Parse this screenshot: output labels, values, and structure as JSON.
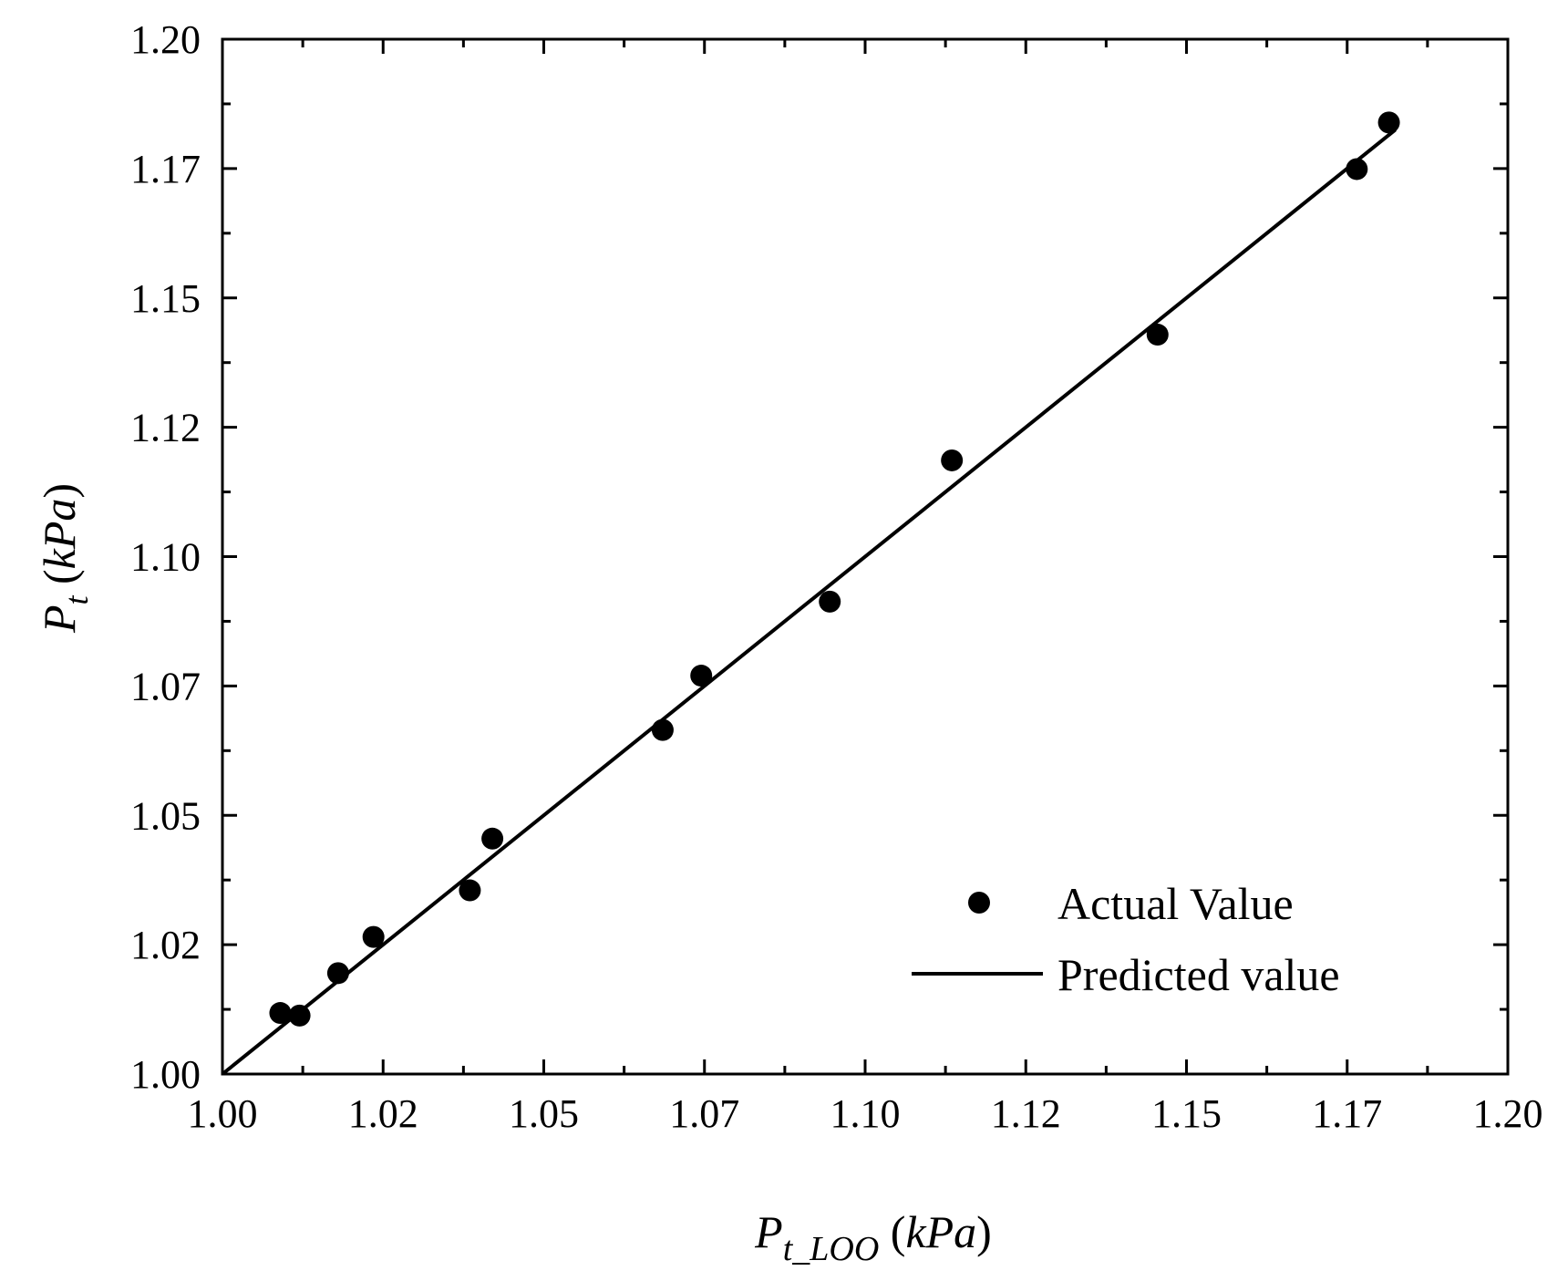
{
  "chart_data": {
    "type": "scatter",
    "title": "",
    "xlabel": {
      "main": "P",
      "sub": "t_LOO",
      "unit": "kPa"
    },
    "ylabel": {
      "main": "P",
      "sub": "t",
      "unit": "kPa"
    },
    "xlim": [
      1.0,
      1.2
    ],
    "ylim": [
      1.0,
      1.2
    ],
    "x_tick_values": [
      1.0,
      1.025,
      1.05,
      1.075,
      1.1,
      1.125,
      1.15,
      1.175,
      1.2
    ],
    "x_tick_labels": [
      "1.00",
      "1.02",
      "1.05",
      "1.07",
      "1.10",
      "1.12",
      "1.15",
      "1.17",
      "1.20"
    ],
    "y_tick_values": [
      1.0,
      1.025,
      1.05,
      1.075,
      1.1,
      1.125,
      1.15,
      1.175,
      1.2
    ],
    "y_tick_labels": [
      "1.00",
      "1.02",
      "1.05",
      "1.07",
      "1.10",
      "1.12",
      "1.15",
      "1.17",
      "1.20"
    ],
    "series": [
      {
        "name": "Actual Value",
        "kind": "scatter",
        "x": [
          1.009,
          1.012,
          1.018,
          1.0235,
          1.0385,
          1.042,
          1.0685,
          1.0745,
          1.0945,
          1.1135,
          1.1455,
          1.1765,
          1.1815
        ],
        "y": [
          1.0118,
          1.0113,
          1.0195,
          1.0265,
          1.0355,
          1.0455,
          1.0665,
          1.077,
          1.0913,
          1.1186,
          1.1429,
          1.1749,
          1.1839
        ]
      },
      {
        "name": "Predicted value",
        "kind": "line",
        "x": [
          1.0,
          1.1825
        ],
        "y": [
          1.0,
          1.1825
        ]
      }
    ],
    "legend": {
      "position": "bottom-right",
      "entries": [
        "Actual Value",
        "Predicted value"
      ]
    },
    "grid": false
  }
}
